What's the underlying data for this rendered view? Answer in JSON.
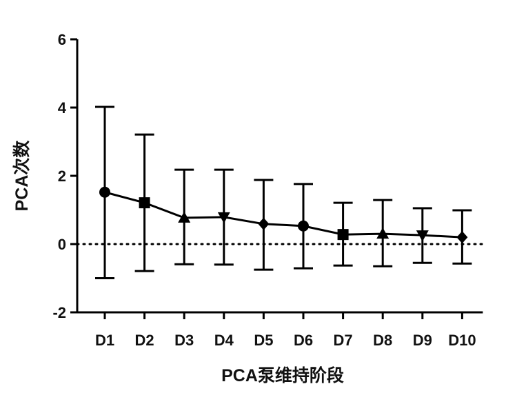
{
  "chart_data": {
    "type": "line",
    "xlabel": "PCA泵维持阶段",
    "ylabel": "PCA次数",
    "categories": [
      "D1",
      "D2",
      "D3",
      "D4",
      "D5",
      "D6",
      "D7",
      "D8",
      "D9",
      "D10"
    ],
    "values": [
      1.52,
      1.21,
      0.77,
      0.79,
      0.59,
      0.53,
      0.28,
      0.3,
      0.26,
      0.2
    ],
    "error_upper": [
      4.02,
      3.21,
      2.18,
      2.18,
      1.88,
      1.76,
      1.21,
      1.29,
      1.05,
      0.99
    ],
    "error_lower": [
      -1.0,
      -0.79,
      -0.59,
      -0.6,
      -0.75,
      -0.71,
      -0.63,
      -0.65,
      -0.55,
      -0.57
    ],
    "markers": [
      "circle",
      "square",
      "triangle-up",
      "triangle-down",
      "diamond",
      "circle",
      "square",
      "triangle-up",
      "triangle-down",
      "diamond"
    ],
    "ylim": [
      -2,
      6
    ],
    "yticks": [
      "-2",
      "0",
      "2",
      "4",
      "6"
    ],
    "reference_line": 0,
    "grid": false,
    "color": "#000000"
  }
}
